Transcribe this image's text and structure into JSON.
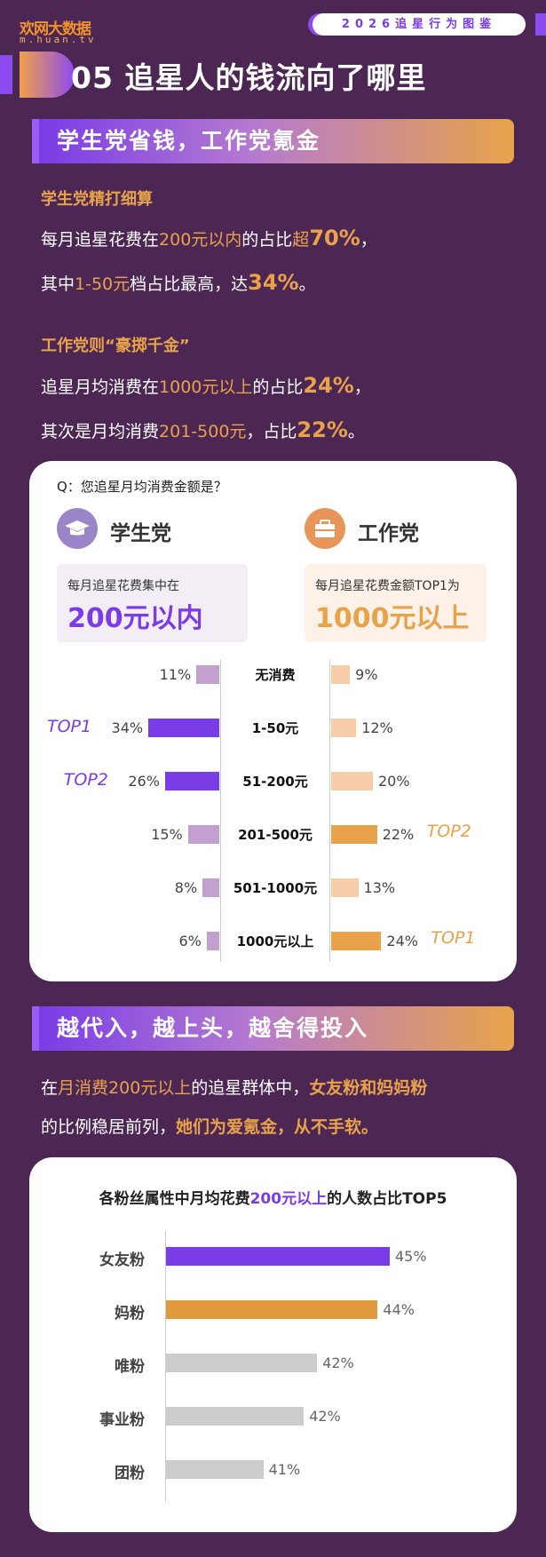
{
  "header": {
    "logo_cn": "欢网大数据",
    "logo_url": "m.huan.tv",
    "brand": "2026追星行为图鉴",
    "section_number": "05",
    "section_title": "追星人的钱流向了哪里"
  },
  "section1": {
    "banner": "学生党省钱，工作党氪金",
    "student_heading": "学生党精打细算",
    "student_lines": [
      [
        "每月追星花费在",
        "200元以内",
        "的占比",
        "超",
        "70%",
        "，"
      ],
      [
        "其中",
        "1-50元",
        "档占比最高，达",
        "34%",
        "。"
      ]
    ],
    "worker_heading": "工作党则“豪掷千金”",
    "worker_lines": [
      [
        "追星月均消费在",
        "1000元以上",
        "的占比",
        "24%",
        "，"
      ],
      [
        "其次是月均消费",
        "201-500元",
        "，占比",
        "22%",
        "。"
      ]
    ]
  },
  "card1": {
    "question": "Q：您追星月均消费金额是？",
    "student": {
      "name": "学生党",
      "caption": "每月追星花费集中在",
      "value": "200元以内"
    },
    "worker": {
      "name": "工作党",
      "caption": "每月追星花费金额TOP1为",
      "value": "1000元以上"
    }
  },
  "section2": {
    "banner": "越代入，越上头，越舍得投入",
    "line1": [
      "在",
      "月消费200元以上",
      "的追星群体中，",
      "女友粉和妈妈粉"
    ],
    "line2": [
      "的比例稳居前列，",
      "她们为爱氪金，从不手软。"
    ]
  },
  "card2": {
    "title_parts": [
      "各粉丝属性中月均花费",
      "200元以上",
      "的人数占比TOP5"
    ]
  },
  "colors": {
    "bg": "#4d2754",
    "purple": "#7a3ce6",
    "orange": "#e8a34a",
    "student_light": "#c3a0d0",
    "worker_light": "#f6cda8",
    "gray": "#cccccc"
  },
  "chart_data": [
    {
      "type": "bar",
      "title": "Q：您追星月均消费金额是？",
      "categories": [
        "无消费",
        "1-50元",
        "51-200元",
        "201-500元",
        "501-1000元",
        "1000元以上"
      ],
      "series": [
        {
          "name": "学生党",
          "values": [
            11,
            34,
            26,
            15,
            8,
            6
          ],
          "ranks": [
            "",
            "TOP1",
            "TOP2",
            "",
            "",
            ""
          ]
        },
        {
          "name": "工作党",
          "values": [
            9,
            12,
            20,
            22,
            13,
            24
          ],
          "ranks": [
            "",
            "",
            "",
            "TOP2",
            "",
            "TOP1"
          ]
        }
      ],
      "unit": "%"
    },
    {
      "type": "bar",
      "title": "各粉丝属性中月均花费200元以上的人数占比TOP5",
      "categories": [
        "女友粉",
        "妈粉",
        "唯粉",
        "事业粉",
        "团粉"
      ],
      "values": [
        45,
        44,
        42,
        42,
        41
      ],
      "unit": "%"
    }
  ]
}
